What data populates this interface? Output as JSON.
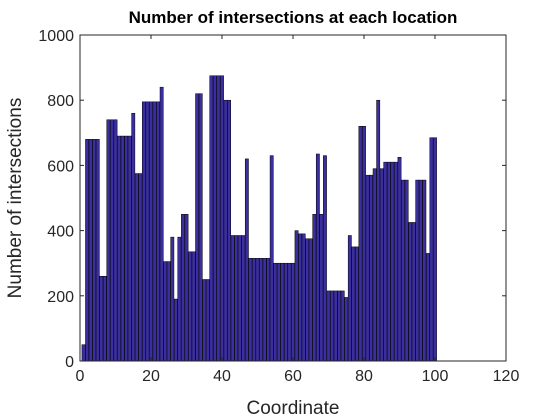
{
  "chart_data": {
    "type": "bar",
    "title": "Number of intersections at each location",
    "xlabel": "Coordinate",
    "ylabel": "Number of intersections",
    "xlim": [
      0,
      120
    ],
    "ylim": [
      0,
      1000
    ],
    "xticks": [
      0,
      20,
      40,
      60,
      80,
      100,
      120
    ],
    "yticks": [
      0,
      200,
      400,
      600,
      800,
      1000
    ],
    "grid": false,
    "legend": "none",
    "bar_color": "#3B2FA0",
    "bar_edge_color": "#000000",
    "x": [
      1,
      2,
      3,
      4,
      5,
      6,
      7,
      8,
      9,
      10,
      11,
      12,
      13,
      14,
      15,
      16,
      17,
      18,
      19,
      20,
      21,
      22,
      23,
      24,
      25,
      26,
      27,
      28,
      29,
      30,
      31,
      32,
      33,
      34,
      35,
      36,
      37,
      38,
      39,
      40,
      41,
      42,
      43,
      44,
      45,
      46,
      47,
      48,
      49,
      50,
      51,
      52,
      53,
      54,
      55,
      56,
      57,
      58,
      59,
      60,
      61,
      62,
      63,
      64,
      65,
      66,
      67,
      68,
      69,
      70,
      71,
      72,
      73,
      74,
      75,
      76,
      77,
      78,
      79,
      80,
      81,
      82,
      83,
      84,
      85,
      86,
      87,
      88,
      89,
      90,
      91,
      92,
      93,
      94,
      95,
      96,
      97,
      98,
      99,
      100
    ],
    "values": [
      50,
      680,
      680,
      680,
      680,
      260,
      260,
      740,
      740,
      740,
      690,
      690,
      690,
      690,
      760,
      575,
      575,
      795,
      795,
      795,
      795,
      795,
      840,
      305,
      305,
      380,
      190,
      380,
      450,
      450,
      335,
      335,
      820,
      820,
      250,
      250,
      875,
      875,
      875,
      875,
      800,
      800,
      385,
      385,
      385,
      385,
      620,
      315,
      315,
      315,
      315,
      315,
      315,
      630,
      300,
      300,
      300,
      300,
      300,
      300,
      400,
      390,
      390,
      375,
      375,
      450,
      635,
      450,
      630,
      215,
      215,
      215,
      215,
      215,
      195,
      385,
      350,
      350,
      720,
      720,
      570,
      570,
      590,
      800,
      590,
      610,
      610,
      610,
      610,
      625,
      555,
      555,
      425,
      425,
      555,
      555,
      555,
      330,
      685,
      685
    ]
  }
}
